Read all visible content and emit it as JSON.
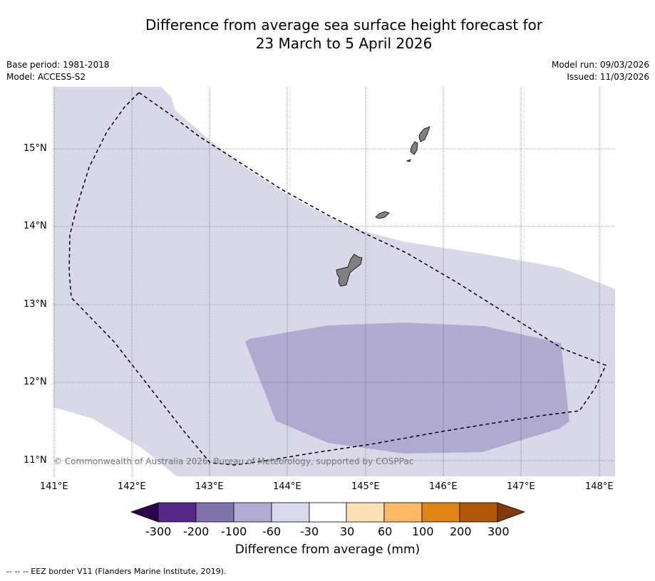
{
  "title": {
    "line1": "Difference from average sea surface height forecast for",
    "line2": "23 March to 5 April 2026"
  },
  "meta": {
    "base_period": "Base period: 1981-2018",
    "model": "Model: ACCESS-S2",
    "model_run": "Model run: 09/03/2026",
    "issued": "Issued: 11/03/2026"
  },
  "map": {
    "lat_labels": [
      "15°N",
      "14°N",
      "13°N",
      "12°N",
      "11°N"
    ],
    "lon_labels": [
      "141°E",
      "142°E",
      "143°E",
      "144°E",
      "145°E",
      "146°E",
      "147°E",
      "148°E"
    ],
    "copyright": "© Commonwealth of Australia 2026, Bureau of Meteorology, supported by COSPPac",
    "colors": {
      "band_-60_-30": "#d8d8e9",
      "band_-100_-60": "#b0aad0",
      "land": "#808080",
      "eez_border": "#000000"
    }
  },
  "colorbar": {
    "title": "Difference from average (mm)",
    "ticks": [
      "-300",
      "-200",
      "-100",
      "-60",
      "-30",
      "30",
      "60",
      "100",
      "200",
      "300"
    ],
    "colors": [
      "#2d004b",
      "#542788",
      "#8073ac",
      "#b2abd2",
      "#d8daeb",
      "#ffffff",
      "#fee0b6",
      "#fdb863",
      "#e08214",
      "#b35806",
      "#7f3b08"
    ]
  },
  "footnote": "--  --  -- EEZ border V11 (Flanders Marine Institute, 2019)."
}
